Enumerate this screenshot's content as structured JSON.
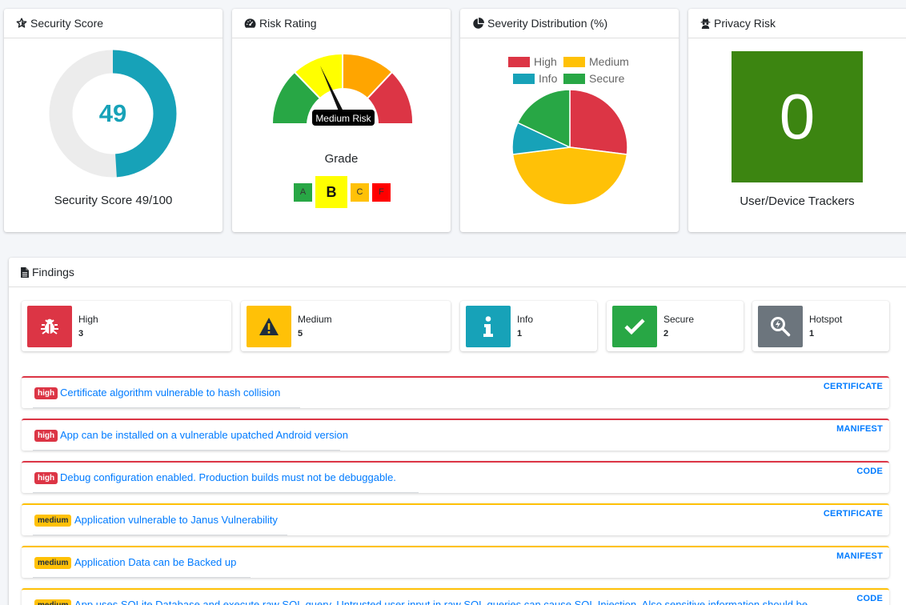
{
  "security_score": {
    "title": "Security Score",
    "score": "49",
    "score_fraction": 0.49,
    "caption": "Security Score 49/100",
    "color": "#17a2b8"
  },
  "risk_rating": {
    "title": "Risk Rating",
    "gauge_label": "Medium Risk",
    "grade_title": "Grade",
    "grades": [
      "A",
      "B",
      "C",
      "F"
    ],
    "selected_grade": "B"
  },
  "severity": {
    "title": "Severity Distribution (%)",
    "legend": [
      {
        "label": "High",
        "color": "#dc3545"
      },
      {
        "label": "Medium",
        "color": "#ffc107"
      },
      {
        "label": "Info",
        "color": "#17a2b8"
      },
      {
        "label": "Secure",
        "color": "#28a745"
      }
    ],
    "chart_data": {
      "type": "pie",
      "categories": [
        "High",
        "Medium",
        "Info",
        "Secure"
      ],
      "values": [
        27,
        46,
        9,
        18
      ],
      "title": "Severity Distribution (%)"
    }
  },
  "privacy": {
    "title": "Privacy Risk",
    "trackers": "0",
    "caption": "User/Device Trackers"
  },
  "findings": {
    "title": "Findings",
    "stats": [
      {
        "label": "High",
        "count": "3",
        "color": "#dc3545",
        "icon": "bug-icon"
      },
      {
        "label": "Medium",
        "count": "5",
        "color": "#ffc107",
        "icon": "warning-icon"
      },
      {
        "label": "Info",
        "count": "1",
        "color": "#17a2b8",
        "icon": "info-icon"
      },
      {
        "label": "Secure",
        "count": "2",
        "color": "#28a745",
        "icon": "check-icon"
      },
      {
        "label": "Hotspot",
        "count": "1",
        "color": "#6c757d",
        "icon": "hotspot-search-icon"
      }
    ],
    "items": [
      {
        "severity": "high",
        "title": "Certificate algorithm vulnerable to hash collision",
        "category": "CERTIFICATE"
      },
      {
        "severity": "high",
        "title": "App can be installed on a vulnerable upatched Android version",
        "category": "MANIFEST"
      },
      {
        "severity": "high",
        "title": "Debug configuration enabled. Production builds must not be debuggable.",
        "category": "CODE"
      },
      {
        "severity": "medium",
        "title": "Application vulnerable to Janus Vulnerability",
        "category": "CERTIFICATE"
      },
      {
        "severity": "medium",
        "title": "Application Data can be Backed up",
        "category": "MANIFEST"
      },
      {
        "severity": "medium",
        "title": "App uses SQLite Database and execute raw SQL query. Untrusted user input in raw SQL queries can cause SQL Injection. Also sensitive information should be",
        "category": "CODE"
      }
    ]
  }
}
